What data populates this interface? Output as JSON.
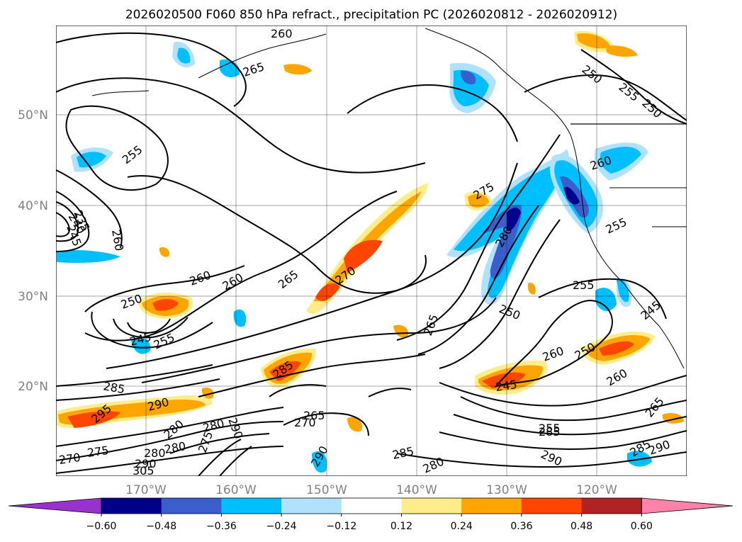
{
  "title": "2026020500 F060 850 hPa refract., precipitation PC (2026020812 - 2026020912)",
  "lat_labels": [
    "50°N",
    "40°N",
    "30°N",
    "20°N"
  ],
  "lon_labels": [
    "170°W",
    "160°W",
    "150°W",
    "140°W",
    "130°W",
    "120°W"
  ],
  "colorbar": {
    "colors": [
      "#9932cc",
      "#00008b",
      "#3a5fcd",
      "#00bfff",
      "#b0e2ff",
      "#ffffff",
      "#ffec8b",
      "#ffa500",
      "#ff4500",
      "#b22222",
      "#ff82ab"
    ],
    "ticks": [
      "−0.60",
      "−0.48",
      "−0.36",
      "−0.24",
      "−0.12",
      "0.12",
      "0.24",
      "0.36",
      "0.48",
      "0.60"
    ]
  },
  "contour_labels": [
    "260",
    "265",
    "255",
    "250",
    "255",
    "250",
    "260",
    "255",
    "260",
    "265",
    "240",
    "245",
    "250",
    "260",
    "235",
    "245",
    "260",
    "255",
    "265",
    "270",
    "275",
    "280",
    "285",
    "290",
    "295",
    "250",
    "255",
    "245",
    "260",
    "245",
    "260",
    "250",
    "265",
    "285",
    "270",
    "265",
    "285",
    "280",
    "285",
    "290",
    "280",
    "275",
    "280",
    "290",
    "305",
    "270",
    "275",
    "280",
    "290",
    "255",
    "285",
    "290",
    "290",
    "280"
  ]
}
